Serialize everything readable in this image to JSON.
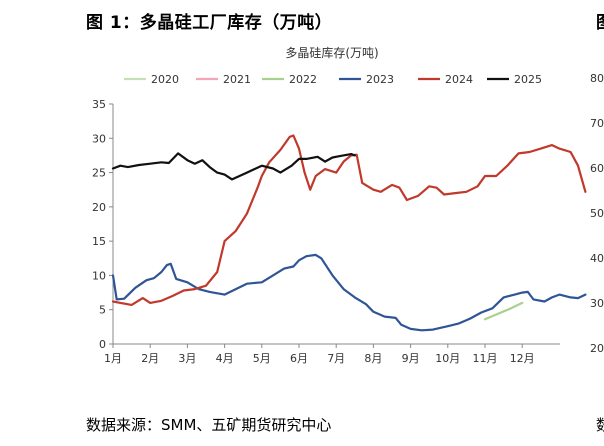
{
  "figure_title": "图 1：多晶硅工厂库存（万吨）",
  "source": "数据来源：SMM、五矿期货研究中心",
  "right_cut_title": "图",
  "right_cut_source": "数",
  "right_panel_ticks": [
    "80",
    "70",
    "60",
    "50",
    "40",
    "30",
    "20"
  ],
  "chart_data": {
    "type": "line",
    "title": "多晶硅库存(万吨)",
    "ylim": [
      0,
      35
    ],
    "yticks": [
      0,
      5,
      10,
      15,
      20,
      25,
      30,
      35
    ],
    "xlim": [
      1,
      13
    ],
    "xticks": [
      {
        "v": 1,
        "label": "1月"
      },
      {
        "v": 2,
        "label": "2月"
      },
      {
        "v": 3,
        "label": "3月"
      },
      {
        "v": 4,
        "label": "4月"
      },
      {
        "v": 5,
        "label": "5月"
      },
      {
        "v": 6,
        "label": "6月"
      },
      {
        "v": 7,
        "label": "7月"
      },
      {
        "v": 8,
        "label": "8月"
      },
      {
        "v": 9,
        "label": "9月"
      },
      {
        "v": 10,
        "label": "10月"
      },
      {
        "v": 11,
        "label": "11月"
      },
      {
        "v": 12,
        "label": "12月"
      }
    ],
    "legend_position": "top",
    "series": [
      {
        "name": "2020",
        "color": "#c6e0b4",
        "points": []
      },
      {
        "name": "2021",
        "color": "#f4a6b9",
        "points": []
      },
      {
        "name": "2022",
        "color": "#a9d18e",
        "points": [
          [
            11.0,
            3.6
          ],
          [
            11.3,
            4.3
          ],
          [
            11.7,
            5.2
          ],
          [
            12.0,
            6.0
          ]
        ]
      },
      {
        "name": "2023",
        "color": "#2f5597",
        "points": [
          [
            1.0,
            10.0
          ],
          [
            1.1,
            6.5
          ],
          [
            1.3,
            6.6
          ],
          [
            1.6,
            8.2
          ],
          [
            1.9,
            9.3
          ],
          [
            2.1,
            9.6
          ],
          [
            2.3,
            10.5
          ],
          [
            2.45,
            11.5
          ],
          [
            2.55,
            11.7
          ],
          [
            2.7,
            9.5
          ],
          [
            3.0,
            9.0
          ],
          [
            3.3,
            8.0
          ],
          [
            3.6,
            7.6
          ],
          [
            3.9,
            7.3
          ],
          [
            4.0,
            7.2
          ],
          [
            4.3,
            8.0
          ],
          [
            4.6,
            8.8
          ],
          [
            5.0,
            9.0
          ],
          [
            5.3,
            10.0
          ],
          [
            5.6,
            11.0
          ],
          [
            5.85,
            11.3
          ],
          [
            6.0,
            12.2
          ],
          [
            6.2,
            12.8
          ],
          [
            6.45,
            13.0
          ],
          [
            6.6,
            12.5
          ],
          [
            6.9,
            10.0
          ],
          [
            7.2,
            8.0
          ],
          [
            7.5,
            6.8
          ],
          [
            7.8,
            5.8
          ],
          [
            8.0,
            4.7
          ],
          [
            8.3,
            4.0
          ],
          [
            8.6,
            3.8
          ],
          [
            8.75,
            2.8
          ],
          [
            9.0,
            2.2
          ],
          [
            9.3,
            2.0
          ],
          [
            9.6,
            2.1
          ],
          [
            10.0,
            2.6
          ],
          [
            10.3,
            3.0
          ],
          [
            10.6,
            3.7
          ],
          [
            10.9,
            4.6
          ],
          [
            11.2,
            5.2
          ],
          [
            11.5,
            6.8
          ],
          [
            11.8,
            7.2
          ],
          [
            12.0,
            7.5
          ],
          [
            12.15,
            7.6
          ],
          [
            12.3,
            6.5
          ],
          [
            12.6,
            6.2
          ],
          [
            12.8,
            6.8
          ],
          [
            13.0,
            7.2
          ],
          [
            13.3,
            6.8
          ],
          [
            13.5,
            6.7
          ],
          [
            13.7,
            7.2
          ]
        ]
      },
      {
        "name": "2024",
        "color": "#c0392b",
        "points": [
          [
            1.0,
            6.2
          ],
          [
            1.2,
            6.0
          ],
          [
            1.5,
            5.7
          ],
          [
            1.8,
            6.7
          ],
          [
            2.0,
            6.0
          ],
          [
            2.3,
            6.3
          ],
          [
            2.6,
            7.0
          ],
          [
            2.9,
            7.8
          ],
          [
            3.2,
            8.0
          ],
          [
            3.5,
            8.5
          ],
          [
            3.8,
            10.5
          ],
          [
            4.0,
            15.0
          ],
          [
            4.3,
            16.5
          ],
          [
            4.6,
            19.0
          ],
          [
            4.9,
            23.0
          ],
          [
            5.0,
            24.5
          ],
          [
            5.2,
            26.5
          ],
          [
            5.5,
            28.3
          ],
          [
            5.75,
            30.2
          ],
          [
            5.85,
            30.4
          ],
          [
            6.0,
            28.5
          ],
          [
            6.15,
            25.0
          ],
          [
            6.3,
            22.5
          ],
          [
            6.45,
            24.5
          ],
          [
            6.7,
            25.5
          ],
          [
            7.0,
            25.0
          ],
          [
            7.2,
            26.6
          ],
          [
            7.4,
            27.5
          ],
          [
            7.55,
            27.6
          ],
          [
            7.7,
            23.5
          ],
          [
            8.0,
            22.5
          ],
          [
            8.2,
            22.2
          ],
          [
            8.5,
            23.2
          ],
          [
            8.7,
            22.8
          ],
          [
            8.9,
            21.0
          ],
          [
            9.2,
            21.6
          ],
          [
            9.5,
            23.0
          ],
          [
            9.7,
            22.8
          ],
          [
            9.9,
            21.8
          ],
          [
            10.2,
            22.0
          ],
          [
            10.5,
            22.2
          ],
          [
            10.8,
            23.0
          ],
          [
            11.0,
            24.5
          ],
          [
            11.3,
            24.5
          ],
          [
            11.6,
            26.0
          ],
          [
            11.9,
            27.8
          ],
          [
            12.2,
            28.0
          ],
          [
            12.5,
            28.5
          ],
          [
            12.8,
            29.0
          ],
          [
            13.0,
            28.5
          ],
          [
            13.3,
            28.0
          ],
          [
            13.5,
            26.0
          ],
          [
            13.7,
            22.2
          ]
        ]
      },
      {
        "name": "2025",
        "color": "#111111",
        "points": [
          [
            1.0,
            25.6
          ],
          [
            1.2,
            26.0
          ],
          [
            1.4,
            25.8
          ],
          [
            1.7,
            26.1
          ],
          [
            2.0,
            26.3
          ],
          [
            2.3,
            26.5
          ],
          [
            2.5,
            26.4
          ],
          [
            2.75,
            27.8
          ],
          [
            3.0,
            26.8
          ],
          [
            3.2,
            26.3
          ],
          [
            3.4,
            26.8
          ],
          [
            3.6,
            25.8
          ],
          [
            3.8,
            25.0
          ],
          [
            4.0,
            24.7
          ],
          [
            4.2,
            24.0
          ],
          [
            4.4,
            24.5
          ],
          [
            4.6,
            25.0
          ],
          [
            4.8,
            25.5
          ],
          [
            5.0,
            26.0
          ],
          [
            5.3,
            25.6
          ],
          [
            5.5,
            25.0
          ],
          [
            5.8,
            26.0
          ],
          [
            6.0,
            27.0
          ],
          [
            6.2,
            27.0
          ],
          [
            6.5,
            27.3
          ],
          [
            6.7,
            26.6
          ],
          [
            6.9,
            27.2
          ],
          [
            7.1,
            27.4
          ],
          [
            7.4,
            27.7
          ],
          [
            7.5,
            27.5
          ]
        ]
      }
    ]
  }
}
